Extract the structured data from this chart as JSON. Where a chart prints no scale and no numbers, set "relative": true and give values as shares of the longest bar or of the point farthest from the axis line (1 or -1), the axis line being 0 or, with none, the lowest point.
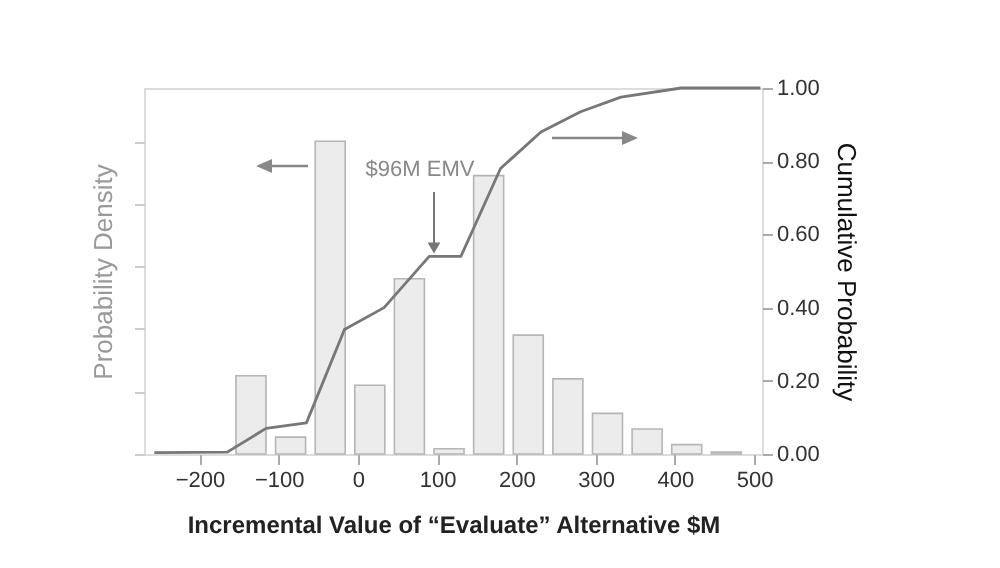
{
  "chart_data": {
    "type": "bar",
    "relative": true,
    "xlabel": "Incremental Value of “Evaluate” Alternative $M",
    "ylabel": "Probability Density",
    "y2label": "Cumulative Probability",
    "xlim": [
      -270,
      510
    ],
    "xticks": [
      -200,
      -100,
      0,
      100,
      200,
      300,
      400,
      500
    ],
    "y2lim": [
      0,
      1
    ],
    "y2ticks": [
      {
        "value": 0,
        "label": "0.00"
      },
      {
        "value": 0.2,
        "label": "0.20"
      },
      {
        "value": 0.4,
        "label": "0.40"
      },
      {
        "value": 0.6,
        "label": "0.60"
      },
      {
        "value": 0.8,
        "label": "0.80"
      },
      {
        "value": 1,
        "label": "1.00"
      }
    ],
    "grid": false,
    "annotations": [
      "$96M EMV"
    ],
    "series": [
      {
        "color": "#ececec",
        "x": [
          -135,
          -85,
          -35,
          15,
          65,
          115,
          165,
          215,
          265,
          315,
          365,
          415,
          465
        ],
        "values": [
          0.25,
          0.054,
          1.0,
          0.22,
          0.56,
          0.017,
          0.89,
          0.38,
          0.24,
          0.13,
          0.08,
          0.03,
          0.006
        ]
      },
      {
        "type": "line",
        "axis": "y2",
        "color": "#777777",
        "x": [
          -257,
          -165,
          -116,
          -65,
          -17,
          33,
          90,
          130,
          180,
          231,
          281,
          332,
          408,
          508
        ],
        "values": [
          0.004,
          0.005,
          0.07,
          0.085,
          0.34,
          0.4,
          0.54,
          0.54,
          0.78,
          0.88,
          0.935,
          0.975,
          1.0,
          1.0
        ]
      }
    ]
  }
}
